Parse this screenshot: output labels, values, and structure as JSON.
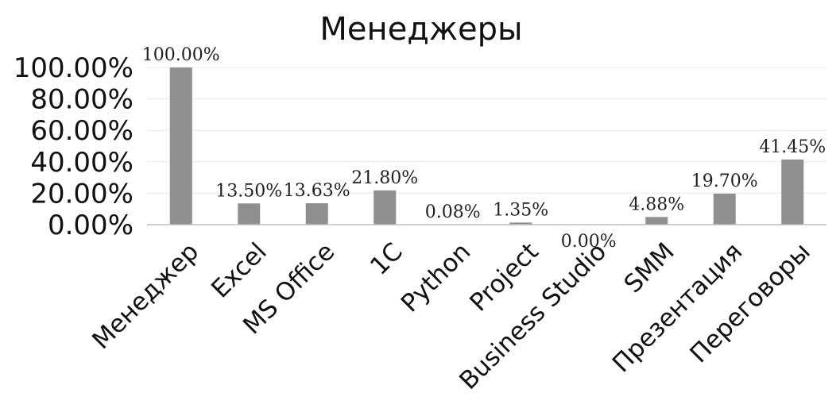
{
  "chart_data": {
    "type": "bar",
    "title": "Менеджеры",
    "xlabel": "",
    "ylabel": "",
    "categories": [
      "Менеджер",
      "Excel",
      "MS Office",
      "1C",
      "Python",
      "Project",
      "Business Studio",
      "SMM",
      "Презентация",
      "Переговоры"
    ],
    "values": [
      100.0,
      13.5,
      13.63,
      21.8,
      0.08,
      1.35,
      0.0,
      4.88,
      19.7,
      41.45
    ],
    "data_labels": [
      "100.00%",
      "13.50%",
      "13.63%",
      "21.80%",
      "0.08%",
      "1.35%",
      "0.00%",
      "4.88%",
      "19.70%",
      "41.45%"
    ],
    "yticks": [
      "0.00%",
      "20.00%",
      "40.00%",
      "60.00%",
      "80.00%",
      "100.00%"
    ],
    "ylim": [
      0,
      100
    ],
    "grid": true,
    "bar_color": "#8f8f8f"
  }
}
